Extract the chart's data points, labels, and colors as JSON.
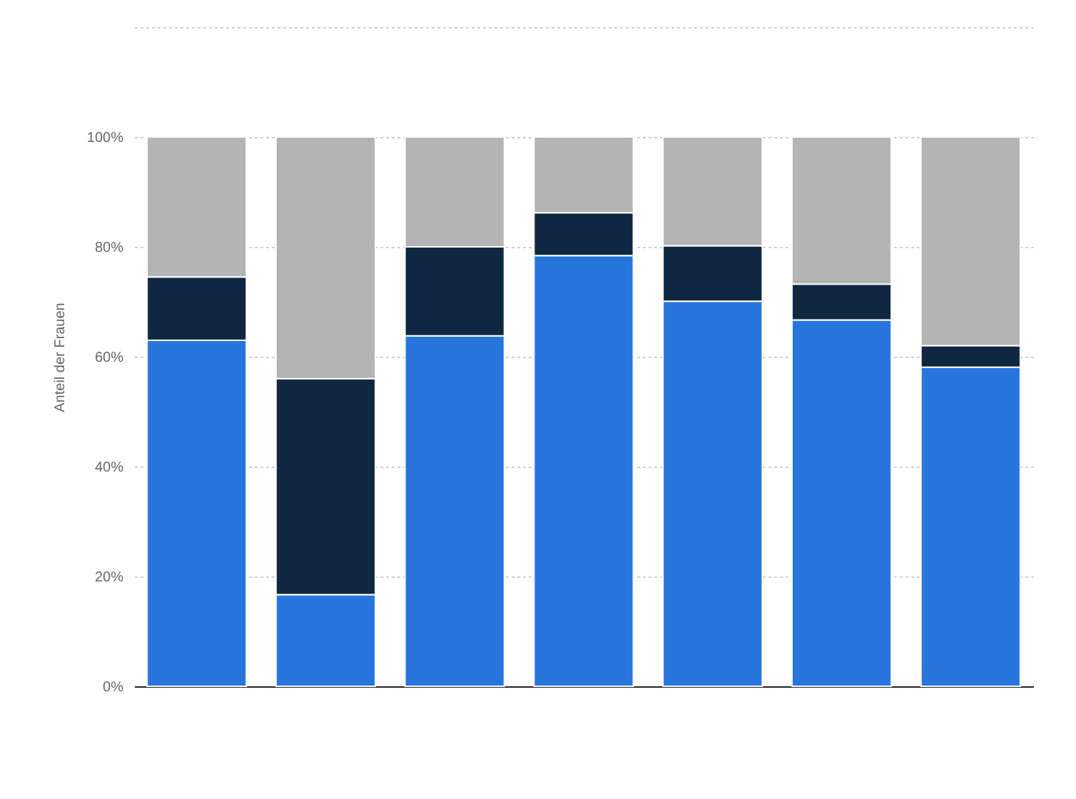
{
  "chart_data": {
    "type": "bar",
    "stacked": true,
    "ylabel": "Anteil der Frauen",
    "categories": [
      null,
      null,
      null,
      null,
      null,
      null,
      null
    ],
    "series": [
      {
        "color": "#2876dd",
        "values": [
          63,
          16.7,
          63.8,
          78.4,
          70.1,
          66.7,
          58.1
        ]
      },
      {
        "color": "#0f2740",
        "values": [
          11.5,
          39.3,
          16.2,
          7.8,
          10.1,
          6.5,
          3.9
        ]
      },
      {
        "color": "#b4b4b4",
        "values": [
          25.5,
          44,
          20,
          13.8,
          19.8,
          26.8,
          38
        ]
      }
    ],
    "ylim": [
      0,
      120
    ],
    "yticks": [
      {
        "value": 0,
        "label": "0%"
      },
      {
        "value": 20,
        "label": "20%"
      },
      {
        "value": 40,
        "label": "40%"
      },
      {
        "value": 60,
        "label": "60%"
      },
      {
        "value": 80,
        "label": "80%"
      },
      {
        "value": 100,
        "label": "100%"
      },
      {
        "value": 120,
        "label": null
      }
    ],
    "grid": "y",
    "tick_labels": "y"
  }
}
